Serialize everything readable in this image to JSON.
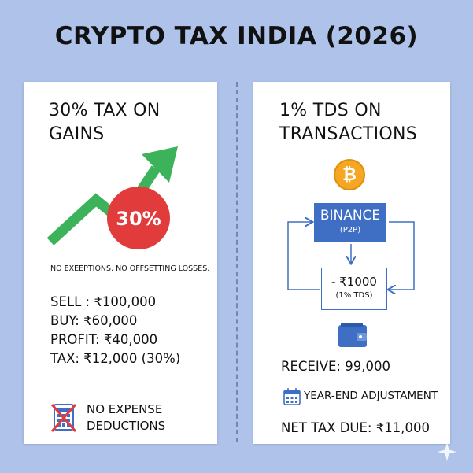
{
  "title": "CRYPTO TAX INDIA (2026)",
  "left": {
    "title_line1": "30% TAX ON",
    "title_line2": "GAINS",
    "badge": "30%",
    "note": "NO EXEEPTIONS. NO OFFSETTING LOSSES.",
    "calc": {
      "sell": "SELL : ₹100,000",
      "buy": "BUY:  ₹60,000",
      "profit": "PROFIT: ₹40,000",
      "tax": "TAX:  ₹12,000 (30%)"
    },
    "footer_line1": "NO EXPENSE",
    "footer_line2": "DEDUCTIONS"
  },
  "right": {
    "title_line1": "1% TDS ON",
    "title_line2": "TRANSACTIONS",
    "coin_symbol": "₿",
    "exchange_name": "BINANCE",
    "exchange_sub": "(P2P)",
    "tds_amount": "- ₹1000",
    "tds_label": "(1% TDS)",
    "receive": "RECEIVE: 99,000",
    "year_end": "YEAR-END ADJUSTAMENT",
    "net_tax": "NET TAX DUE: ₹11,000"
  },
  "colors": {
    "background": "#aec2ea",
    "arrow_green": "#3cb35b",
    "badge_red": "#e23b3b",
    "binance_blue": "#3f6fc4",
    "bitcoin_orange": "#f5a623"
  }
}
